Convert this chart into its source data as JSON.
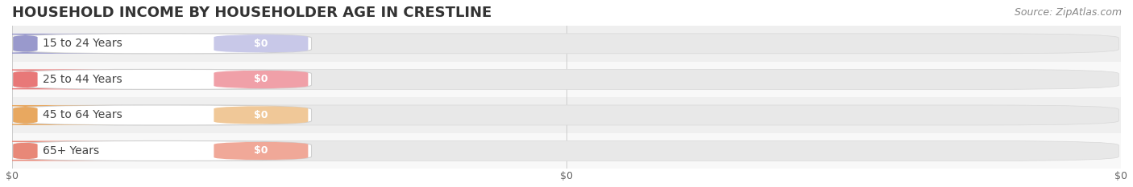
{
  "title": "HOUSEHOLD INCOME BY HOUSEHOLDER AGE IN CRESTLINE",
  "source": "Source: ZipAtlas.com",
  "categories": [
    "15 to 24 Years",
    "25 to 44 Years",
    "45 to 64 Years",
    "65+ Years"
  ],
  "values": [
    0,
    0,
    0,
    0
  ],
  "accent_colors": [
    "#9999cc",
    "#e87878",
    "#e8a860",
    "#e88878"
  ],
  "label_pill_colors": [
    "#c8c8e8",
    "#f0a0a8",
    "#f0c898",
    "#f0a898"
  ],
  "row_bg_colors": [
    "#efefef",
    "#f8f8f8",
    "#efefef",
    "#f8f8f8"
  ],
  "bar_bg_color": "#e8e8e8",
  "bar_bg_color2": "#f0f0f0",
  "xlim": [
    0,
    1
  ],
  "xlabel_ticks": [
    0.0,
    0.5,
    1.0
  ],
  "xlabel_labels": [
    "$0",
    "$0",
    "$0"
  ],
  "background_color": "#ffffff",
  "title_fontsize": 13,
  "source_fontsize": 9,
  "label_fontsize": 9,
  "category_fontsize": 10,
  "value_label": "$0"
}
